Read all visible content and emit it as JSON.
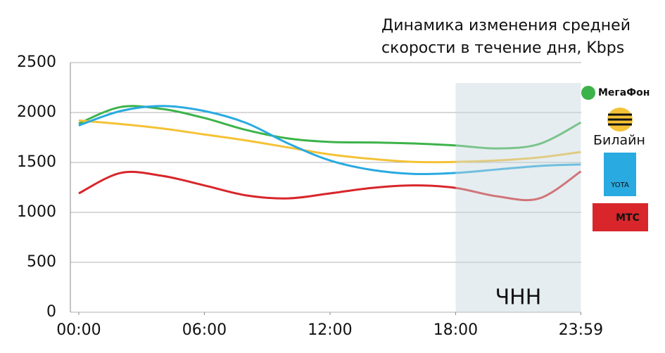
{
  "chart_data": {
    "type": "line",
    "title": [
      "Динамика изменения средней",
      "скорости в течение дня, Kbps"
    ],
    "x": [
      0,
      2,
      4,
      6,
      8,
      10,
      12,
      14,
      16,
      18,
      20,
      22,
      23.98
    ],
    "series": [
      {
        "name": "МегаФон",
        "color": "#3cb34a",
        "values": [
          1890,
          2055,
          2035,
          1945,
          1825,
          1740,
          1705,
          1700,
          1690,
          1670,
          1640,
          1685,
          1900
        ]
      },
      {
        "name": "Билайн",
        "color": "#f4c236",
        "values": [
          1920,
          1885,
          1840,
          1780,
          1720,
          1650,
          1580,
          1535,
          1505,
          1505,
          1520,
          1550,
          1605
        ]
      },
      {
        "name": "YOTA",
        "color": "#29aae1",
        "values": [
          1870,
          2015,
          2065,
          2015,
          1895,
          1690,
          1520,
          1425,
          1385,
          1395,
          1430,
          1465,
          1480
        ]
      },
      {
        "name": "МТС",
        "color": "#d8262a",
        "values": [
          1190,
          1395,
          1365,
          1270,
          1170,
          1140,
          1190,
          1245,
          1270,
          1245,
          1160,
          1140,
          1410
        ]
      }
    ],
    "xlim": [
      -0.4,
      24
    ],
    "xticks": [
      {
        "value": 0,
        "label": "00:00"
      },
      {
        "value": 6,
        "label": "06:00"
      },
      {
        "value": 12,
        "label": "12:00"
      },
      {
        "value": 18,
        "label": "18:00"
      },
      {
        "value": 23.98,
        "label": "23:59"
      }
    ],
    "ylim": [
      0,
      2500
    ],
    "yticks": [
      0,
      500,
      1000,
      1500,
      2000,
      2500
    ],
    "grid": true,
    "highlight": {
      "from": 18,
      "to": 23.98,
      "label": "ЧНН"
    }
  }
}
